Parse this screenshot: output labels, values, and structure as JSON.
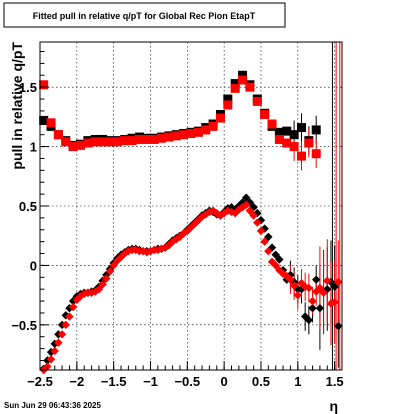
{
  "chart_data": {
    "type": "scatter",
    "title": "Fitted pull in relative q/pT for Global Rec Pion EtapT",
    "xlabel": "η",
    "ylabel": "pull in relative q/pT",
    "xlim": [
      -2.5,
      1.6
    ],
    "ylim": [
      -0.88,
      1.88
    ],
    "grid": true,
    "x_ticks": [
      {
        "value": -2.5,
        "label": "−2.5"
      },
      {
        "value": -2,
        "label": "−2"
      },
      {
        "value": -1.5,
        "label": "−1.5"
      },
      {
        "value": -1,
        "label": "−1"
      },
      {
        "value": -0.5,
        "label": "−0.5"
      },
      {
        "value": 0,
        "label": "0"
      },
      {
        "value": 0.5,
        "label": "0.5"
      },
      {
        "value": 1,
        "label": "1"
      },
      {
        "value": 1.5,
        "label": "1.5"
      }
    ],
    "y_ticks": [
      {
        "value": -0.5,
        "label": "−0.5"
      },
      {
        "value": 0,
        "label": "0"
      },
      {
        "value": 0.5,
        "label": "0.5"
      },
      {
        "value": 1,
        "label": "1"
      },
      {
        "value": 1.5,
        "label": "1.5"
      }
    ],
    "series": [
      {
        "color": "#000000",
        "marker": "square",
        "x": [
          -2.45,
          -2.35,
          -2.25,
          -2.15,
          -2.05,
          -1.95,
          -1.85,
          -1.75,
          -1.65,
          -1.55,
          -1.45,
          -1.35,
          -1.25,
          -1.15,
          -1.05,
          -0.95,
          -0.85,
          -0.75,
          -0.65,
          -0.55,
          -0.45,
          -0.35,
          -0.25,
          -0.15,
          -0.05,
          0.05,
          0.15,
          0.25,
          0.35,
          0.45,
          0.55,
          0.65,
          0.75,
          0.85,
          0.95,
          1.05,
          1.15,
          1.25
        ],
        "y": [
          1.22,
          1.17,
          1.1,
          1.05,
          1.01,
          1.02,
          1.05,
          1.06,
          1.06,
          1.05,
          1.05,
          1.06,
          1.07,
          1.08,
          1.07,
          1.07,
          1.08,
          1.09,
          1.1,
          1.11,
          1.12,
          1.13,
          1.16,
          1.19,
          1.27,
          1.4,
          1.53,
          1.6,
          1.52,
          1.4,
          1.28,
          1.17,
          1.12,
          1.13,
          1.1,
          1.16,
          1.05,
          1.14
        ]
      },
      {
        "color": "#ff0000",
        "marker": "square",
        "x": [
          -2.45,
          -2.35,
          -2.25,
          -2.15,
          -2.05,
          -1.95,
          -1.85,
          -1.75,
          -1.65,
          -1.55,
          -1.45,
          -1.35,
          -1.25,
          -1.15,
          -1.05,
          -0.95,
          -0.85,
          -0.75,
          -0.65,
          -0.55,
          -0.45,
          -0.35,
          -0.25,
          -0.15,
          -0.05,
          0.05,
          0.15,
          0.25,
          0.35,
          0.45,
          0.55,
          0.65,
          0.75,
          0.85,
          0.95,
          1.05,
          1.15,
          1.25
        ],
        "y": [
          1.52,
          1.2,
          1.1,
          1.04,
          1.0,
          1.01,
          1.03,
          1.04,
          1.04,
          1.04,
          1.04,
          1.05,
          1.05,
          1.06,
          1.06,
          1.06,
          1.07,
          1.08,
          1.09,
          1.1,
          1.11,
          1.12,
          1.14,
          1.17,
          1.24,
          1.35,
          1.49,
          1.56,
          1.5,
          1.38,
          1.27,
          1.19,
          1.06,
          1.03,
          1.0,
          0.92,
          1.03,
          0.94
        ]
      },
      {
        "color": "#000000",
        "marker": "diamond",
        "x": [
          -2.45,
          -2.4,
          -2.35,
          -2.3,
          -2.25,
          -2.2,
          -2.15,
          -2.1,
          -2.05,
          -2.0,
          -1.95,
          -1.9,
          -1.85,
          -1.8,
          -1.75,
          -1.7,
          -1.65,
          -1.6,
          -1.55,
          -1.5,
          -1.45,
          -1.4,
          -1.35,
          -1.3,
          -1.25,
          -1.2,
          -1.15,
          -1.1,
          -1.05,
          -1.0,
          -0.95,
          -0.9,
          -0.85,
          -0.8,
          -0.75,
          -0.7,
          -0.65,
          -0.6,
          -0.55,
          -0.5,
          -0.45,
          -0.4,
          -0.35,
          -0.3,
          -0.25,
          -0.2,
          -0.15,
          -0.1,
          -0.05,
          0.0,
          0.05,
          0.1,
          0.15,
          0.2,
          0.25,
          0.3,
          0.35,
          0.4,
          0.45,
          0.5,
          0.55,
          0.6,
          0.65,
          0.7,
          0.75,
          0.8,
          0.85,
          0.9,
          0.95,
          1.0,
          1.05,
          1.1,
          1.15,
          1.2,
          1.25,
          1.3,
          1.35,
          1.4,
          1.45,
          1.5,
          1.55
        ],
        "y": [
          -0.87,
          -0.8,
          -0.73,
          -0.66,
          -0.58,
          -0.5,
          -0.42,
          -0.36,
          -0.3,
          -0.26,
          -0.24,
          -0.23,
          -0.23,
          -0.22,
          -0.21,
          -0.18,
          -0.13,
          -0.08,
          -0.03,
          0.02,
          0.06,
          0.09,
          0.11,
          0.13,
          0.14,
          0.14,
          0.13,
          0.12,
          0.12,
          0.12,
          0.13,
          0.14,
          0.14,
          0.15,
          0.18,
          0.21,
          0.23,
          0.25,
          0.27,
          0.3,
          0.33,
          0.36,
          0.39,
          0.42,
          0.44,
          0.46,
          0.45,
          0.43,
          0.42,
          0.45,
          0.48,
          0.49,
          0.47,
          0.5,
          0.53,
          0.57,
          0.53,
          0.49,
          0.44,
          0.38,
          0.31,
          0.24,
          0.15,
          0.09,
          0.05,
          -0.04,
          -0.12,
          -0.08,
          -0.14,
          -0.2,
          -0.2,
          -0.43,
          -0.46,
          -0.36,
          -0.12,
          -0.36,
          -0.22,
          -0.2,
          -0.14,
          -0.18,
          -0.51
        ]
      },
      {
        "color": "#ff0000",
        "marker": "diamond",
        "x": [
          -2.45,
          -2.4,
          -2.35,
          -2.3,
          -2.25,
          -2.2,
          -2.15,
          -2.1,
          -2.05,
          -2.0,
          -1.95,
          -1.9,
          -1.85,
          -1.8,
          -1.75,
          -1.7,
          -1.65,
          -1.6,
          -1.55,
          -1.5,
          -1.45,
          -1.4,
          -1.35,
          -1.3,
          -1.25,
          -1.2,
          -1.15,
          -1.1,
          -1.05,
          -1.0,
          -0.95,
          -0.9,
          -0.85,
          -0.8,
          -0.75,
          -0.7,
          -0.65,
          -0.6,
          -0.55,
          -0.5,
          -0.45,
          -0.4,
          -0.35,
          -0.3,
          -0.25,
          -0.2,
          -0.15,
          -0.1,
          -0.05,
          0.0,
          0.05,
          0.1,
          0.15,
          0.2,
          0.25,
          0.3,
          0.35,
          0.4,
          0.45,
          0.5,
          0.55,
          0.6,
          0.65,
          0.7,
          0.75,
          0.8,
          0.85,
          0.9,
          0.95,
          1.0,
          1.05,
          1.1,
          1.15,
          1.2,
          1.25,
          1.3,
          1.35,
          1.4,
          1.45,
          1.5,
          1.55
        ],
        "y": [
          -0.88,
          -0.85,
          -0.79,
          -0.72,
          -0.65,
          -0.58,
          -0.5,
          -0.43,
          -0.35,
          -0.29,
          -0.26,
          -0.24,
          -0.23,
          -0.23,
          -0.22,
          -0.2,
          -0.16,
          -0.11,
          -0.05,
          0.0,
          0.04,
          0.07,
          0.1,
          0.12,
          0.13,
          0.13,
          0.12,
          0.12,
          0.11,
          0.12,
          0.13,
          0.13,
          0.14,
          0.15,
          0.17,
          0.2,
          0.22,
          0.24,
          0.27,
          0.29,
          0.32,
          0.35,
          0.38,
          0.41,
          0.43,
          0.45,
          0.46,
          0.44,
          0.42,
          0.44,
          0.46,
          0.45,
          0.44,
          0.47,
          0.49,
          0.51,
          0.46,
          0.42,
          0.36,
          0.29,
          0.2,
          0.12,
          0.03,
          0.0,
          -0.04,
          -0.07,
          -0.09,
          -0.12,
          -0.17,
          -0.25,
          -0.15,
          -0.18,
          -0.19,
          -0.3,
          -0.22,
          -0.19,
          -0.23,
          -0.13,
          -0.32,
          -0.31,
          -0.14
        ]
      }
    ]
  },
  "stamp": "Sun Jun 29 06:43:36 2025"
}
